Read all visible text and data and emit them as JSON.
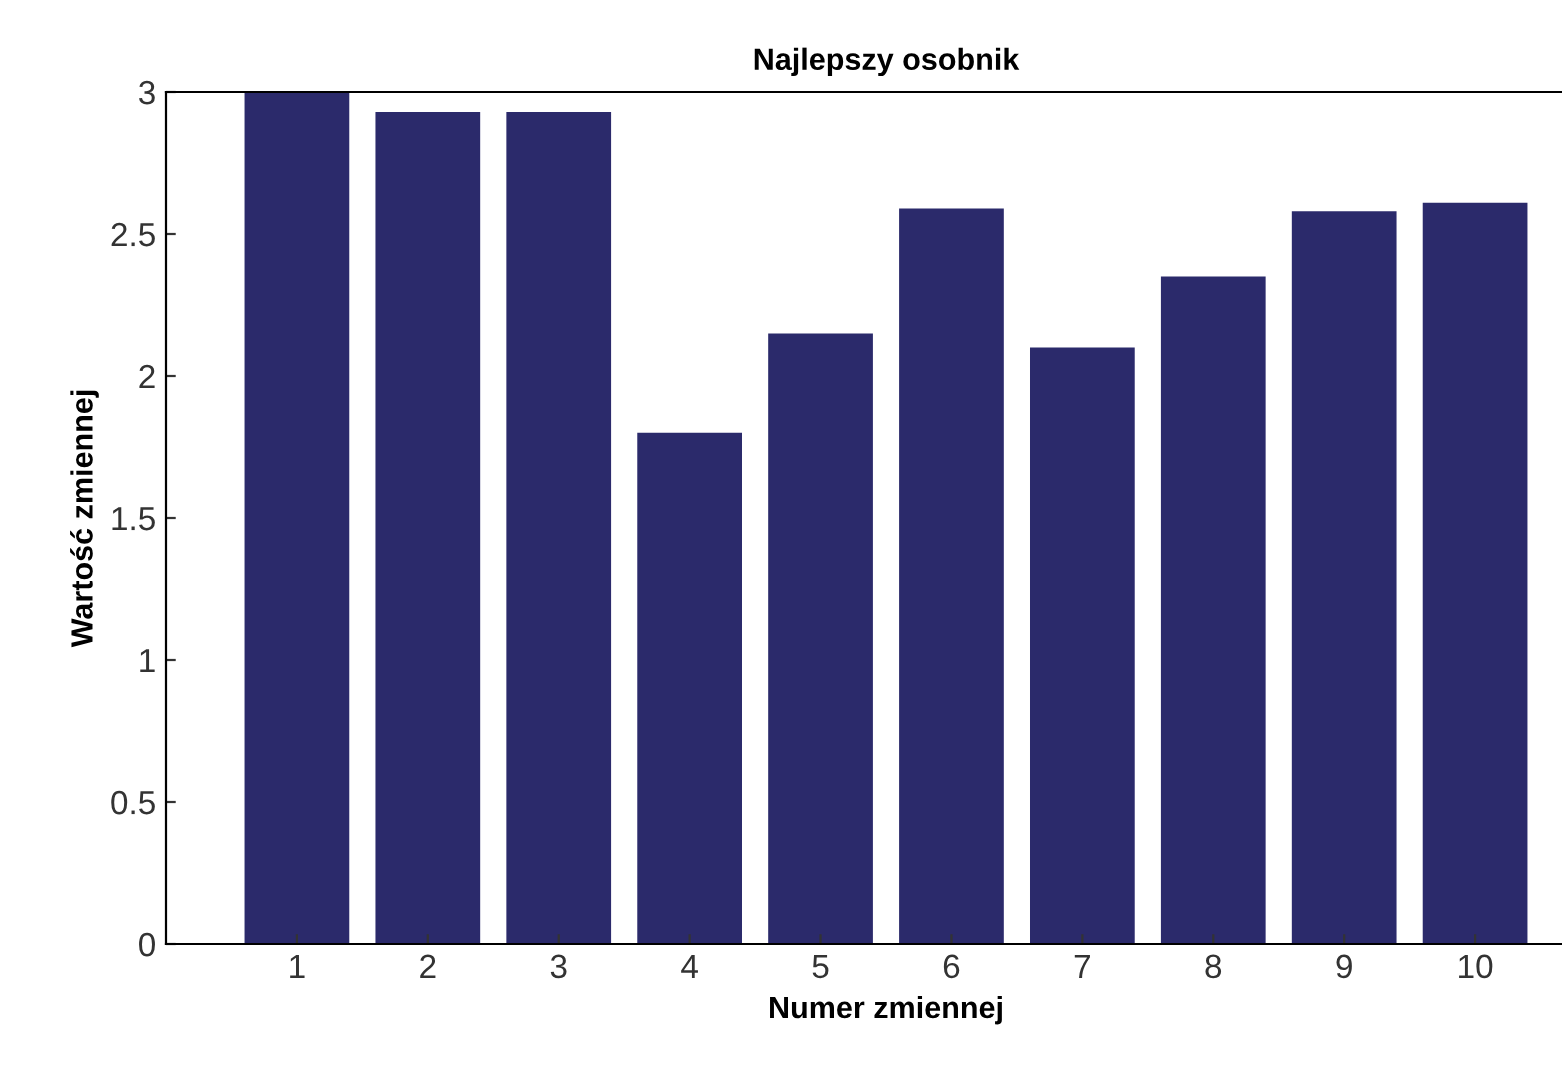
{
  "chart_data": {
    "type": "bar",
    "title": "Najlepszy osobnik",
    "xlabel": "Numer zmiennej",
    "ylabel": "Wartość zmiennej",
    "categories": [
      "1",
      "2",
      "3",
      "4",
      "5",
      "6",
      "7",
      "8",
      "9",
      "10"
    ],
    "values": [
      3.0,
      2.93,
      2.93,
      1.8,
      2.15,
      2.59,
      2.1,
      2.35,
      2.58,
      2.61
    ],
    "color": "#2b2a6b",
    "ylim": [
      0,
      3
    ],
    "yticks": [
      0,
      0.5,
      1,
      1.5,
      2,
      2.5,
      3
    ],
    "grid": false
  }
}
